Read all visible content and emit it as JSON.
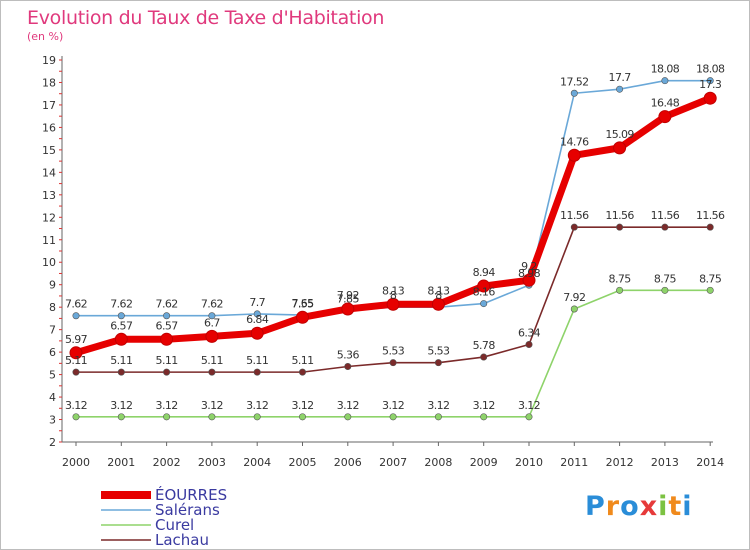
{
  "header": {
    "title": "Evolution du Taux de Taxe d'Habitation",
    "subtitle": "(en %)"
  },
  "logo": {
    "text": "Proxiti"
  },
  "chart_data": {
    "type": "line",
    "title": "Evolution du Taux de Taxe d'Habitation",
    "ylabel": "(en %)",
    "x": [
      "2000",
      "2001",
      "2002",
      "2003",
      "2004",
      "2005",
      "2006",
      "2007",
      "2008",
      "2009",
      "2010",
      "2011",
      "2012",
      "2013",
      "2014"
    ],
    "yticks": [
      2,
      3,
      4,
      5,
      6,
      7,
      8,
      9,
      10,
      11,
      12,
      13,
      14,
      15,
      16,
      17,
      18,
      19
    ],
    "ylim": [
      2,
      19
    ],
    "grid": false,
    "legend_position": "bottom-left",
    "series": [
      {
        "name": "ÉOURRES",
        "color": "#e60000",
        "values": [
          5.97,
          6.57,
          6.57,
          6.7,
          6.84,
          7.55,
          7.92,
          8.13,
          8.13,
          8.94,
          9.2,
          14.76,
          15.09,
          16.48,
          17.3
        ],
        "labels": [
          "5.97",
          "6.57",
          "6.57",
          "6.7",
          "6.84",
          "7.55",
          "7.92",
          "8.13",
          "8.13",
          "8.94",
          "9.2",
          "14.76",
          "15.09",
          "16.48",
          "17.3"
        ]
      },
      {
        "name": "Salérans",
        "color": "#6aa8d8",
        "values": [
          7.62,
          7.62,
          7.62,
          7.62,
          7.7,
          7.65,
          7.85,
          8.0,
          8.0,
          8.16,
          8.98,
          17.52,
          17.7,
          18.08,
          18.08
        ],
        "labels": [
          "7.62",
          "7.62",
          "7.62",
          "7.62",
          "7.7",
          "7.65",
          "7.85",
          "8",
          "8",
          "8.16",
          "8.98",
          "17.52",
          "17.7",
          "18.08",
          "18.08"
        ]
      },
      {
        "name": "Curel",
        "color": "#8ed36a",
        "values": [
          3.12,
          3.12,
          3.12,
          3.12,
          3.12,
          3.12,
          3.12,
          3.12,
          3.12,
          3.12,
          3.12,
          7.92,
          8.75,
          8.75,
          8.75
        ],
        "labels": [
          "3.12",
          "3.12",
          "3.12",
          "3.12",
          "3.12",
          "3.12",
          "3.12",
          "3.12",
          "3.12",
          "3.12",
          "3.12",
          "7.92",
          "8.75",
          "8.75",
          "8.75"
        ]
      },
      {
        "name": "Lachau",
        "color": "#7b2a2a",
        "values": [
          5.11,
          5.11,
          5.11,
          5.11,
          5.11,
          5.11,
          5.36,
          5.53,
          5.53,
          5.78,
          6.34,
          11.56,
          11.56,
          11.56,
          11.56
        ],
        "labels": [
          "5.11",
          "5.11",
          "5.11",
          "5.11",
          "5.11",
          "5.11",
          "5.36",
          "5.53",
          "5.53",
          "5.78",
          "6.34",
          "11.56",
          "11.56",
          "11.56",
          "11.56"
        ]
      }
    ]
  }
}
